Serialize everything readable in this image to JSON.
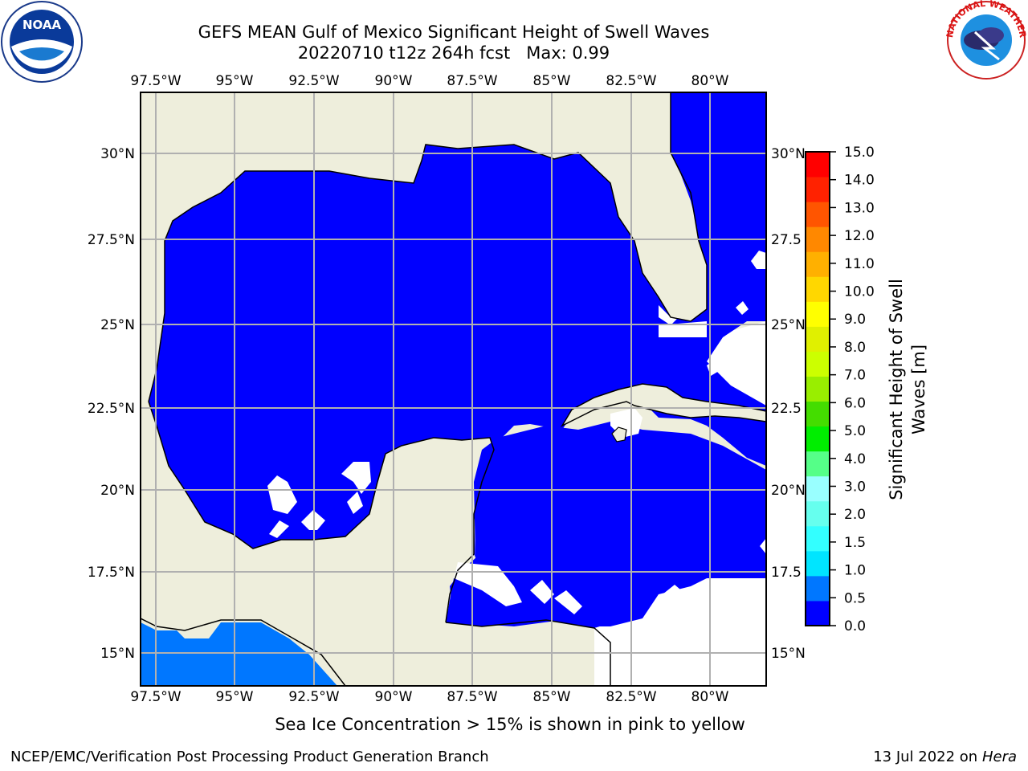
{
  "title_line1": "GEFS MEAN Gulf of Mexico Significant Height of Swell Waves",
  "title_line2": "20220710 t12z 264h fcst   Max: 0.99",
  "footer_note": "Sea Ice Concentration > 15% is shown in pink to yellow",
  "credit": "NCEP/EMC/Verification Post Processing Product Generation Branch",
  "date_text": "13 Jul 2022 on ",
  "date_host": "Hera",
  "logos": {
    "left": "NOAA",
    "right": "NATIONAL WEATHER SERVICE"
  },
  "map": {
    "lon_labels": [
      "97.5°W",
      "95°W",
      "92.5°W",
      "90°W",
      "87.5°W",
      "85°W",
      "82.5°W",
      "80°W"
    ],
    "lat_labels": [
      "30°N",
      "27.5°N",
      "25°N",
      "22.5°N",
      "20°N",
      "17.5°N",
      "15°N"
    ],
    "lat_labels_right": [
      "30°N",
      "27.5",
      "25°N",
      "22.5",
      "20°N",
      "17.5",
      "15°N"
    ],
    "lon_range": [
      -98,
      -78.2
    ],
    "lat_range": [
      14,
      31.8
    ],
    "colors": {
      "land": "#eeeedc",
      "sea_low": "#0000ff",
      "sea_mid": "#0077ff",
      "nodata": "#ffffff"
    }
  },
  "colorbar": {
    "label_line1": "Significant Height of Swell",
    "label_line2": "Waves [m]",
    "ticks": [
      "0.0",
      "0.5",
      "1.0",
      "1.5",
      "2.0",
      "3.0",
      "4.0",
      "5.0",
      "6.0",
      "7.0",
      "8.0",
      "9.0",
      "10.0",
      "11.0",
      "12.0",
      "13.0",
      "14.0",
      "15.0"
    ],
    "colors": [
      "#0000ff",
      "#0077ff",
      "#00e5ff",
      "#33ffff",
      "#66ffee",
      "#99ffff",
      "#55ff88",
      "#00ee00",
      "#44dd00",
      "#99ee00",
      "#ccff00",
      "#e0f000",
      "#ffff00",
      "#ffd700",
      "#ffb000",
      "#ff8800",
      "#ff5500",
      "#ff2200",
      "#ff0000"
    ]
  }
}
